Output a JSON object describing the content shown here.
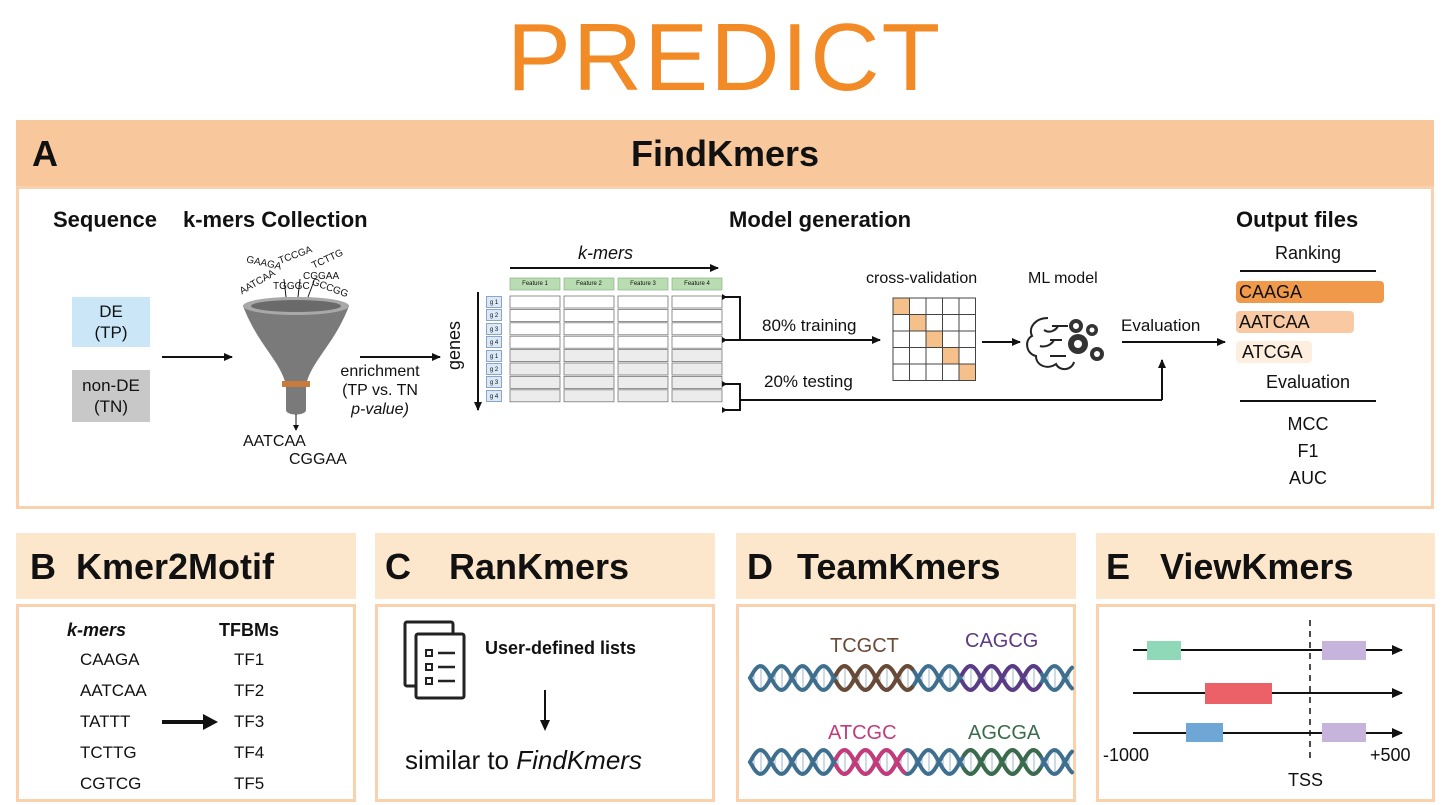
{
  "title": "PREDICT",
  "panelA": {
    "letter": "A",
    "name": "FindKmers",
    "sequence_title": "Sequence",
    "kmers_title": "k-mers Collection",
    "model_title": "Model generation",
    "output_title": "Output files",
    "de_line1": "DE",
    "de_line2": "(TP)",
    "nonde_line1": "non-DE",
    "nonde_line2": "(TN)",
    "funnel_kmers": [
      "GAAGA",
      "TCCGA",
      "TCTTG",
      "AATCAA",
      "CGGAA",
      "TGGGC",
      "GCCGG"
    ],
    "funnel_out1": "AATCAA",
    "funnel_out2": "CGGAA",
    "enrichment_line1": "enrichment",
    "enrichment_line2": "(TP vs. TN",
    "enrichment_line3": "p-value)",
    "matrix_kmers_label": "k-mers",
    "matrix_genes_label": "genes",
    "features": [
      "Feature 1",
      "Feature 2",
      "Feature 3",
      "Feature 4"
    ],
    "gene_rows": [
      "g 1",
      "g 2",
      "g 3",
      "g 4",
      "g 1",
      "g 2",
      "g 3",
      "g 4"
    ],
    "training_label": "80% training",
    "testing_label": "20% testing",
    "cv_label": "cross-validation",
    "ml_label": "ML model",
    "evaluation_arrow_label": "Evaluation",
    "ranking_label": "Ranking",
    "ranking_items": [
      "CAAGA",
      "AATCAA",
      "ATCGA"
    ],
    "evaluation_label": "Evaluation",
    "metrics": [
      "MCC",
      "F1",
      "AUC"
    ]
  },
  "panelB": {
    "letter": "B",
    "name": "Kmer2Motif",
    "kmers_header": "k-mers",
    "tfbms_header": "TFBMs",
    "kmers": [
      "CAAGA",
      "AATCAA",
      "TATTT",
      "TCTTG",
      "CGTCG"
    ],
    "tfbms": [
      "TF1",
      "TF2",
      "TF3",
      "TF4",
      "TF5"
    ]
  },
  "panelC": {
    "letter": "C",
    "name": "RanKmers",
    "lists_label": "User-defined lists",
    "similar_prefix": "similar to ",
    "similar_em": "FindKmers"
  },
  "panelD": {
    "letter": "D",
    "name": "TeamKmers",
    "kmers": [
      "TCGCT",
      "CAGCG",
      "ATCGC",
      "AGCGA"
    ]
  },
  "panelE": {
    "letter": "E",
    "name": "ViewKmers",
    "left_label": "-1000",
    "right_label": "+500",
    "tss_label": "TSS"
  },
  "colors": {
    "title": "#f28a26",
    "header": "#f8c89c",
    "header_light": "#fde7cc",
    "de_box": "#cbe6f7",
    "nonde_box": "#c8c8c8",
    "rank1": "#f0994a",
    "rank2": "#f8c9a2",
    "rank3": "#fdeee0",
    "dna_blue": "#3e6f8f",
    "kmer_brown": "#6b4a35",
    "kmer_purple": "#5b3a86",
    "kmer_pink": "#c43a7a",
    "kmer_green": "#3b6b4c"
  }
}
